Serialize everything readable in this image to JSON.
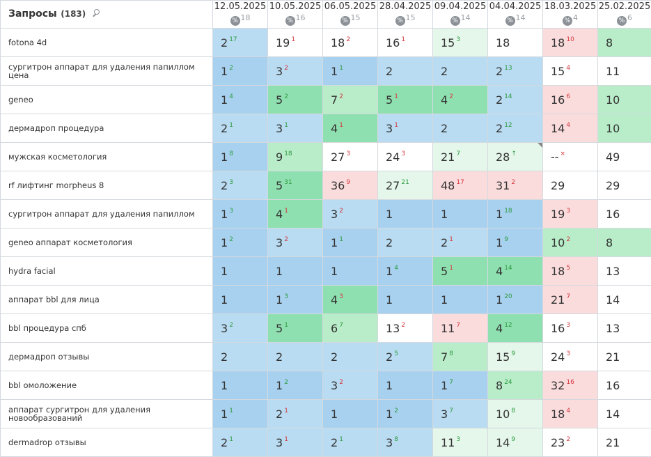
{
  "header": {
    "title": "Запросы",
    "count": "(183)",
    "search_icon": "search-icon",
    "dates": [
      {
        "date": "12.05.2025",
        "count": "18"
      },
      {
        "date": "10.05.2025",
        "count": "16"
      },
      {
        "date": "06.05.2025",
        "count": "15"
      },
      {
        "date": "28.04.2025",
        "count": "15"
      },
      {
        "date": "09.04.2025",
        "count": "14"
      },
      {
        "date": "04.04.2025",
        "count": "14"
      },
      {
        "date": "18.03.2025",
        "count": "4"
      },
      {
        "date": "25.02.2025",
        "count": "6"
      }
    ],
    "percent_badge": "%"
  },
  "colors": {
    "blue": "#a8d1ef",
    "light_blue": "#b9dcf2",
    "green": "#8fe0b0",
    "light_green": "#b9edc9",
    "pale_green": "#e4f7ea",
    "pink": "#fbdcdd",
    "delta_up": "#2d9a3f",
    "delta_down": "#d5373d"
  },
  "rows": [
    {
      "query": "fotona 4d",
      "cells": [
        {
          "v": "2",
          "d": "17",
          "dir": "up",
          "bg": "b2"
        },
        {
          "v": "19",
          "d": "1",
          "dir": "dn",
          "bg": "w"
        },
        {
          "v": "18",
          "d": "2",
          "dir": "dn",
          "bg": "w"
        },
        {
          "v": "16",
          "d": "1",
          "dir": "dn",
          "bg": "w"
        },
        {
          "v": "15",
          "d": "3",
          "dir": "up",
          "bg": "g3"
        },
        {
          "v": "18",
          "d": "",
          "dir": "",
          "bg": "w"
        },
        {
          "v": "18",
          "d": "10",
          "dir": "dn",
          "bg": "p1"
        },
        {
          "v": "8",
          "d": "",
          "dir": "",
          "bg": "g2"
        }
      ]
    },
    {
      "query": "сургитрон аппарат для удаления папиллом цена",
      "cells": [
        {
          "v": "1",
          "d": "2",
          "dir": "up",
          "bg": "b1"
        },
        {
          "v": "3",
          "d": "2",
          "dir": "dn",
          "bg": "b2"
        },
        {
          "v": "1",
          "d": "1",
          "dir": "up",
          "bg": "b1"
        },
        {
          "v": "2",
          "d": "",
          "dir": "",
          "bg": "b2"
        },
        {
          "v": "2",
          "d": "",
          "dir": "",
          "bg": "b2"
        },
        {
          "v": "2",
          "d": "13",
          "dir": "up",
          "bg": "b2"
        },
        {
          "v": "15",
          "d": "4",
          "dir": "dn",
          "bg": "w"
        },
        {
          "v": "11",
          "d": "",
          "dir": "",
          "bg": "w"
        }
      ]
    },
    {
      "query": "geneo",
      "cells": [
        {
          "v": "1",
          "d": "4",
          "dir": "up",
          "bg": "b1"
        },
        {
          "v": "5",
          "d": "2",
          "dir": "up",
          "bg": "g1"
        },
        {
          "v": "7",
          "d": "2",
          "dir": "dn",
          "bg": "g2"
        },
        {
          "v": "5",
          "d": "1",
          "dir": "dn",
          "bg": "g1"
        },
        {
          "v": "4",
          "d": "2",
          "dir": "dn",
          "bg": "g1"
        },
        {
          "v": "2",
          "d": "14",
          "dir": "up",
          "bg": "b2"
        },
        {
          "v": "16",
          "d": "6",
          "dir": "dn",
          "bg": "p1"
        },
        {
          "v": "10",
          "d": "",
          "dir": "",
          "bg": "g2"
        }
      ]
    },
    {
      "query": "дермадроп процедура",
      "cells": [
        {
          "v": "2",
          "d": "1",
          "dir": "up",
          "bg": "b2"
        },
        {
          "v": "3",
          "d": "1",
          "dir": "up",
          "bg": "b2"
        },
        {
          "v": "4",
          "d": "1",
          "dir": "dn",
          "bg": "g1"
        },
        {
          "v": "3",
          "d": "1",
          "dir": "dn",
          "bg": "b2"
        },
        {
          "v": "2",
          "d": "",
          "dir": "",
          "bg": "b2"
        },
        {
          "v": "2",
          "d": "12",
          "dir": "up",
          "bg": "b2"
        },
        {
          "v": "14",
          "d": "4",
          "dir": "dn",
          "bg": "p1"
        },
        {
          "v": "10",
          "d": "",
          "dir": "",
          "bg": "g2"
        }
      ]
    },
    {
      "query": "мужская косметология",
      "cells": [
        {
          "v": "1",
          "d": "8",
          "dir": "up",
          "bg": "b1"
        },
        {
          "v": "9",
          "d": "18",
          "dir": "up",
          "bg": "g2"
        },
        {
          "v": "27",
          "d": "3",
          "dir": "dn",
          "bg": "w"
        },
        {
          "v": "24",
          "d": "3",
          "dir": "dn",
          "bg": "w"
        },
        {
          "v": "21",
          "d": "7",
          "dir": "up",
          "bg": "g3"
        },
        {
          "v": "28",
          "d": "↑",
          "dir": "up",
          "bg": "g3",
          "corner": true
        },
        {
          "v": "--",
          "d": "",
          "dir": "",
          "bg": "w",
          "x": "×"
        },
        {
          "v": "49",
          "d": "",
          "dir": "",
          "bg": "w"
        }
      ]
    },
    {
      "query": "rf лифтинг morpheus 8",
      "cells": [
        {
          "v": "2",
          "d": "3",
          "dir": "up",
          "bg": "b2"
        },
        {
          "v": "5",
          "d": "31",
          "dir": "up",
          "bg": "g1"
        },
        {
          "v": "36",
          "d": "9",
          "dir": "dn",
          "bg": "p1"
        },
        {
          "v": "27",
          "d": "21",
          "dir": "up",
          "bg": "g3"
        },
        {
          "v": "48",
          "d": "17",
          "dir": "dn",
          "bg": "p1"
        },
        {
          "v": "31",
          "d": "2",
          "dir": "dn",
          "bg": "p1"
        },
        {
          "v": "29",
          "d": "",
          "dir": "",
          "bg": "w"
        },
        {
          "v": "29",
          "d": "",
          "dir": "",
          "bg": "w"
        }
      ]
    },
    {
      "query": "сургитрон аппарат для удаления папиллом",
      "cells": [
        {
          "v": "1",
          "d": "3",
          "dir": "up",
          "bg": "b1"
        },
        {
          "v": "4",
          "d": "1",
          "dir": "dn",
          "bg": "g1"
        },
        {
          "v": "3",
          "d": "2",
          "dir": "dn",
          "bg": "b2"
        },
        {
          "v": "1",
          "d": "",
          "dir": "",
          "bg": "b1"
        },
        {
          "v": "1",
          "d": "",
          "dir": "",
          "bg": "b1"
        },
        {
          "v": "1",
          "d": "18",
          "dir": "up",
          "bg": "b1"
        },
        {
          "v": "19",
          "d": "3",
          "dir": "dn",
          "bg": "p1"
        },
        {
          "v": "16",
          "d": "",
          "dir": "",
          "bg": "w"
        }
      ]
    },
    {
      "query": "geneo аппарат косметология",
      "cells": [
        {
          "v": "1",
          "d": "2",
          "dir": "up",
          "bg": "b1"
        },
        {
          "v": "3",
          "d": "2",
          "dir": "dn",
          "bg": "b2"
        },
        {
          "v": "1",
          "d": "1",
          "dir": "up",
          "bg": "b1"
        },
        {
          "v": "2",
          "d": "",
          "dir": "",
          "bg": "b2"
        },
        {
          "v": "2",
          "d": "1",
          "dir": "dn",
          "bg": "b2"
        },
        {
          "v": "1",
          "d": "9",
          "dir": "up",
          "bg": "b1"
        },
        {
          "v": "10",
          "d": "2",
          "dir": "dn",
          "bg": "g2"
        },
        {
          "v": "8",
          "d": "",
          "dir": "",
          "bg": "g2"
        }
      ]
    },
    {
      "query": "hydra facial",
      "cells": [
        {
          "v": "1",
          "d": "",
          "dir": "",
          "bg": "b1"
        },
        {
          "v": "1",
          "d": "",
          "dir": "",
          "bg": "b1"
        },
        {
          "v": "1",
          "d": "",
          "dir": "",
          "bg": "b1"
        },
        {
          "v": "1",
          "d": "4",
          "dir": "up",
          "bg": "b1"
        },
        {
          "v": "5",
          "d": "1",
          "dir": "dn",
          "bg": "g1"
        },
        {
          "v": "4",
          "d": "14",
          "dir": "up",
          "bg": "g1"
        },
        {
          "v": "18",
          "d": "5",
          "dir": "dn",
          "bg": "p1"
        },
        {
          "v": "13",
          "d": "",
          "dir": "",
          "bg": "w"
        }
      ]
    },
    {
      "query": "аппарат bbl для лица",
      "cells": [
        {
          "v": "1",
          "d": "",
          "dir": "",
          "bg": "b1"
        },
        {
          "v": "1",
          "d": "3",
          "dir": "up",
          "bg": "b1"
        },
        {
          "v": "4",
          "d": "3",
          "dir": "dn",
          "bg": "g1"
        },
        {
          "v": "1",
          "d": "",
          "dir": "",
          "bg": "b1"
        },
        {
          "v": "1",
          "d": "",
          "dir": "",
          "bg": "b1"
        },
        {
          "v": "1",
          "d": "20",
          "dir": "up",
          "bg": "b1"
        },
        {
          "v": "21",
          "d": "7",
          "dir": "dn",
          "bg": "p1"
        },
        {
          "v": "14",
          "d": "",
          "dir": "",
          "bg": "w"
        }
      ]
    },
    {
      "query": "bbl процедура спб",
      "cells": [
        {
          "v": "3",
          "d": "2",
          "dir": "up",
          "bg": "b2"
        },
        {
          "v": "5",
          "d": "1",
          "dir": "up",
          "bg": "g1"
        },
        {
          "v": "6",
          "d": "7",
          "dir": "up",
          "bg": "g2"
        },
        {
          "v": "13",
          "d": "2",
          "dir": "dn",
          "bg": "w"
        },
        {
          "v": "11",
          "d": "7",
          "dir": "dn",
          "bg": "p1"
        },
        {
          "v": "4",
          "d": "12",
          "dir": "up",
          "bg": "g1"
        },
        {
          "v": "16",
          "d": "3",
          "dir": "dn",
          "bg": "w"
        },
        {
          "v": "13",
          "d": "",
          "dir": "",
          "bg": "w"
        }
      ]
    },
    {
      "query": "дермадроп отзывы",
      "cells": [
        {
          "v": "2",
          "d": "",
          "dir": "",
          "bg": "b2"
        },
        {
          "v": "2",
          "d": "",
          "dir": "",
          "bg": "b2"
        },
        {
          "v": "2",
          "d": "",
          "dir": "",
          "bg": "b2"
        },
        {
          "v": "2",
          "d": "5",
          "dir": "up",
          "bg": "b2"
        },
        {
          "v": "7",
          "d": "8",
          "dir": "up",
          "bg": "g2"
        },
        {
          "v": "15",
          "d": "9",
          "dir": "up",
          "bg": "g3"
        },
        {
          "v": "24",
          "d": "3",
          "dir": "dn",
          "bg": "w"
        },
        {
          "v": "21",
          "d": "",
          "dir": "",
          "bg": "w"
        }
      ]
    },
    {
      "query": "bbl омоложение",
      "cells": [
        {
          "v": "1",
          "d": "",
          "dir": "",
          "bg": "b1"
        },
        {
          "v": "1",
          "d": "2",
          "dir": "up",
          "bg": "b1"
        },
        {
          "v": "3",
          "d": "2",
          "dir": "dn",
          "bg": "b2"
        },
        {
          "v": "1",
          "d": "",
          "dir": "",
          "bg": "b1"
        },
        {
          "v": "1",
          "d": "7",
          "dir": "up",
          "bg": "b1"
        },
        {
          "v": "8",
          "d": "24",
          "dir": "up",
          "bg": "g2"
        },
        {
          "v": "32",
          "d": "16",
          "dir": "dn",
          "bg": "p1"
        },
        {
          "v": "16",
          "d": "",
          "dir": "",
          "bg": "w"
        }
      ]
    },
    {
      "query": "аппарат сургитрон для удаления новообразований",
      "cells": [
        {
          "v": "1",
          "d": "1",
          "dir": "up",
          "bg": "b1"
        },
        {
          "v": "2",
          "d": "1",
          "dir": "dn",
          "bg": "b2"
        },
        {
          "v": "1",
          "d": "",
          "dir": "",
          "bg": "b1"
        },
        {
          "v": "1",
          "d": "2",
          "dir": "up",
          "bg": "b1"
        },
        {
          "v": "3",
          "d": "7",
          "dir": "up",
          "bg": "b2"
        },
        {
          "v": "10",
          "d": "8",
          "dir": "up",
          "bg": "g3"
        },
        {
          "v": "18",
          "d": "4",
          "dir": "dn",
          "bg": "p1"
        },
        {
          "v": "14",
          "d": "",
          "dir": "",
          "bg": "w"
        }
      ]
    },
    {
      "query": "dermadrop отзывы",
      "cells": [
        {
          "v": "2",
          "d": "1",
          "dir": "up",
          "bg": "b2"
        },
        {
          "v": "3",
          "d": "1",
          "dir": "dn",
          "bg": "b2"
        },
        {
          "v": "2",
          "d": "1",
          "dir": "up",
          "bg": "b2"
        },
        {
          "v": "3",
          "d": "8",
          "dir": "up",
          "bg": "b2"
        },
        {
          "v": "11",
          "d": "3",
          "dir": "up",
          "bg": "g3"
        },
        {
          "v": "14",
          "d": "9",
          "dir": "up",
          "bg": "g3"
        },
        {
          "v": "23",
          "d": "2",
          "dir": "dn",
          "bg": "w"
        },
        {
          "v": "21",
          "d": "",
          "dir": "",
          "bg": "w"
        }
      ]
    }
  ]
}
